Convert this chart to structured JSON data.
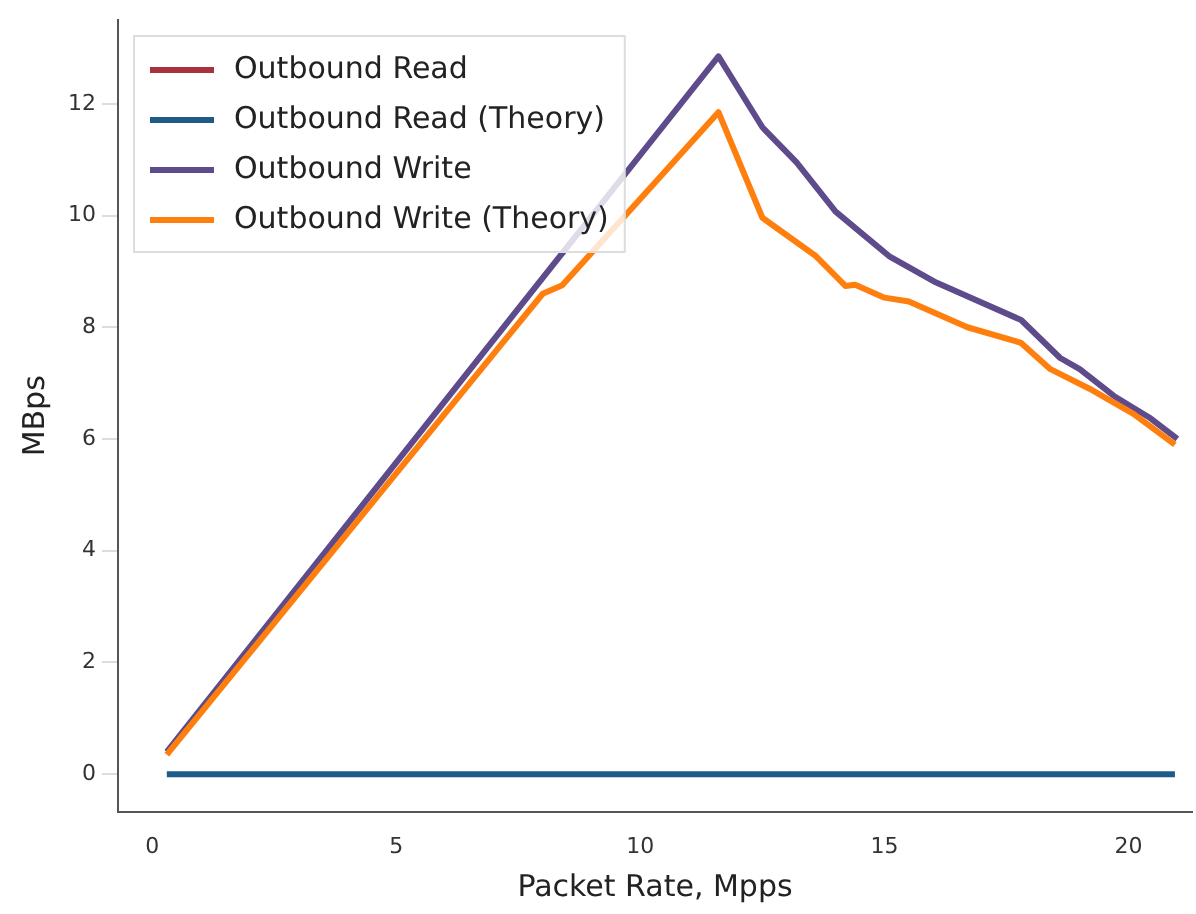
{
  "chart_data": {
    "type": "line",
    "xlabel": "Packet Rate, Mpps",
    "ylabel": "MBps",
    "xlim": [
      -0.7,
      21.3
    ],
    "ylim": [
      -0.67,
      13.5
    ],
    "xticks": [
      0,
      5,
      10,
      15,
      20
    ],
    "yticks": [
      0,
      2,
      4,
      6,
      8,
      10,
      12
    ],
    "grid": false,
    "legend": "top left",
    "series": [
      {
        "name": "Outbound Read",
        "color": "#a8323e"
      },
      {
        "name": "Outbound Read (Theory)",
        "color": "#1f5b87",
        "x": [
          0.3,
          20.95
        ],
        "values": [
          0,
          0
        ]
      },
      {
        "name": "Outbound Write",
        "color": "#5e4b8b",
        "x": [
          0.3,
          11.6,
          12.5,
          13.2,
          14.0,
          15.1,
          16.06,
          17.8,
          18.6,
          19.0,
          19.7,
          20.45,
          21.0
        ],
        "values": [
          0.4,
          12.85,
          11.58,
          10.95,
          10.07,
          9.27,
          8.8,
          8.13,
          7.45,
          7.25,
          6.77,
          6.37,
          6.0
        ]
      },
      {
        "name": "Outbound Write (Theory)",
        "color": "#ff7f0e",
        "x": [
          0.3,
          8.0,
          8.4,
          11.6,
          12.5,
          13.6,
          14.2,
          14.4,
          15.0,
          15.5,
          16.7,
          17.8,
          18.4,
          19.2,
          20.1,
          20.95
        ],
        "values": [
          0.35,
          8.6,
          8.75,
          11.85,
          9.96,
          9.27,
          8.74,
          8.76,
          8.53,
          8.46,
          8.0,
          7.72,
          7.25,
          6.9,
          6.45,
          5.9
        ]
      }
    ]
  }
}
